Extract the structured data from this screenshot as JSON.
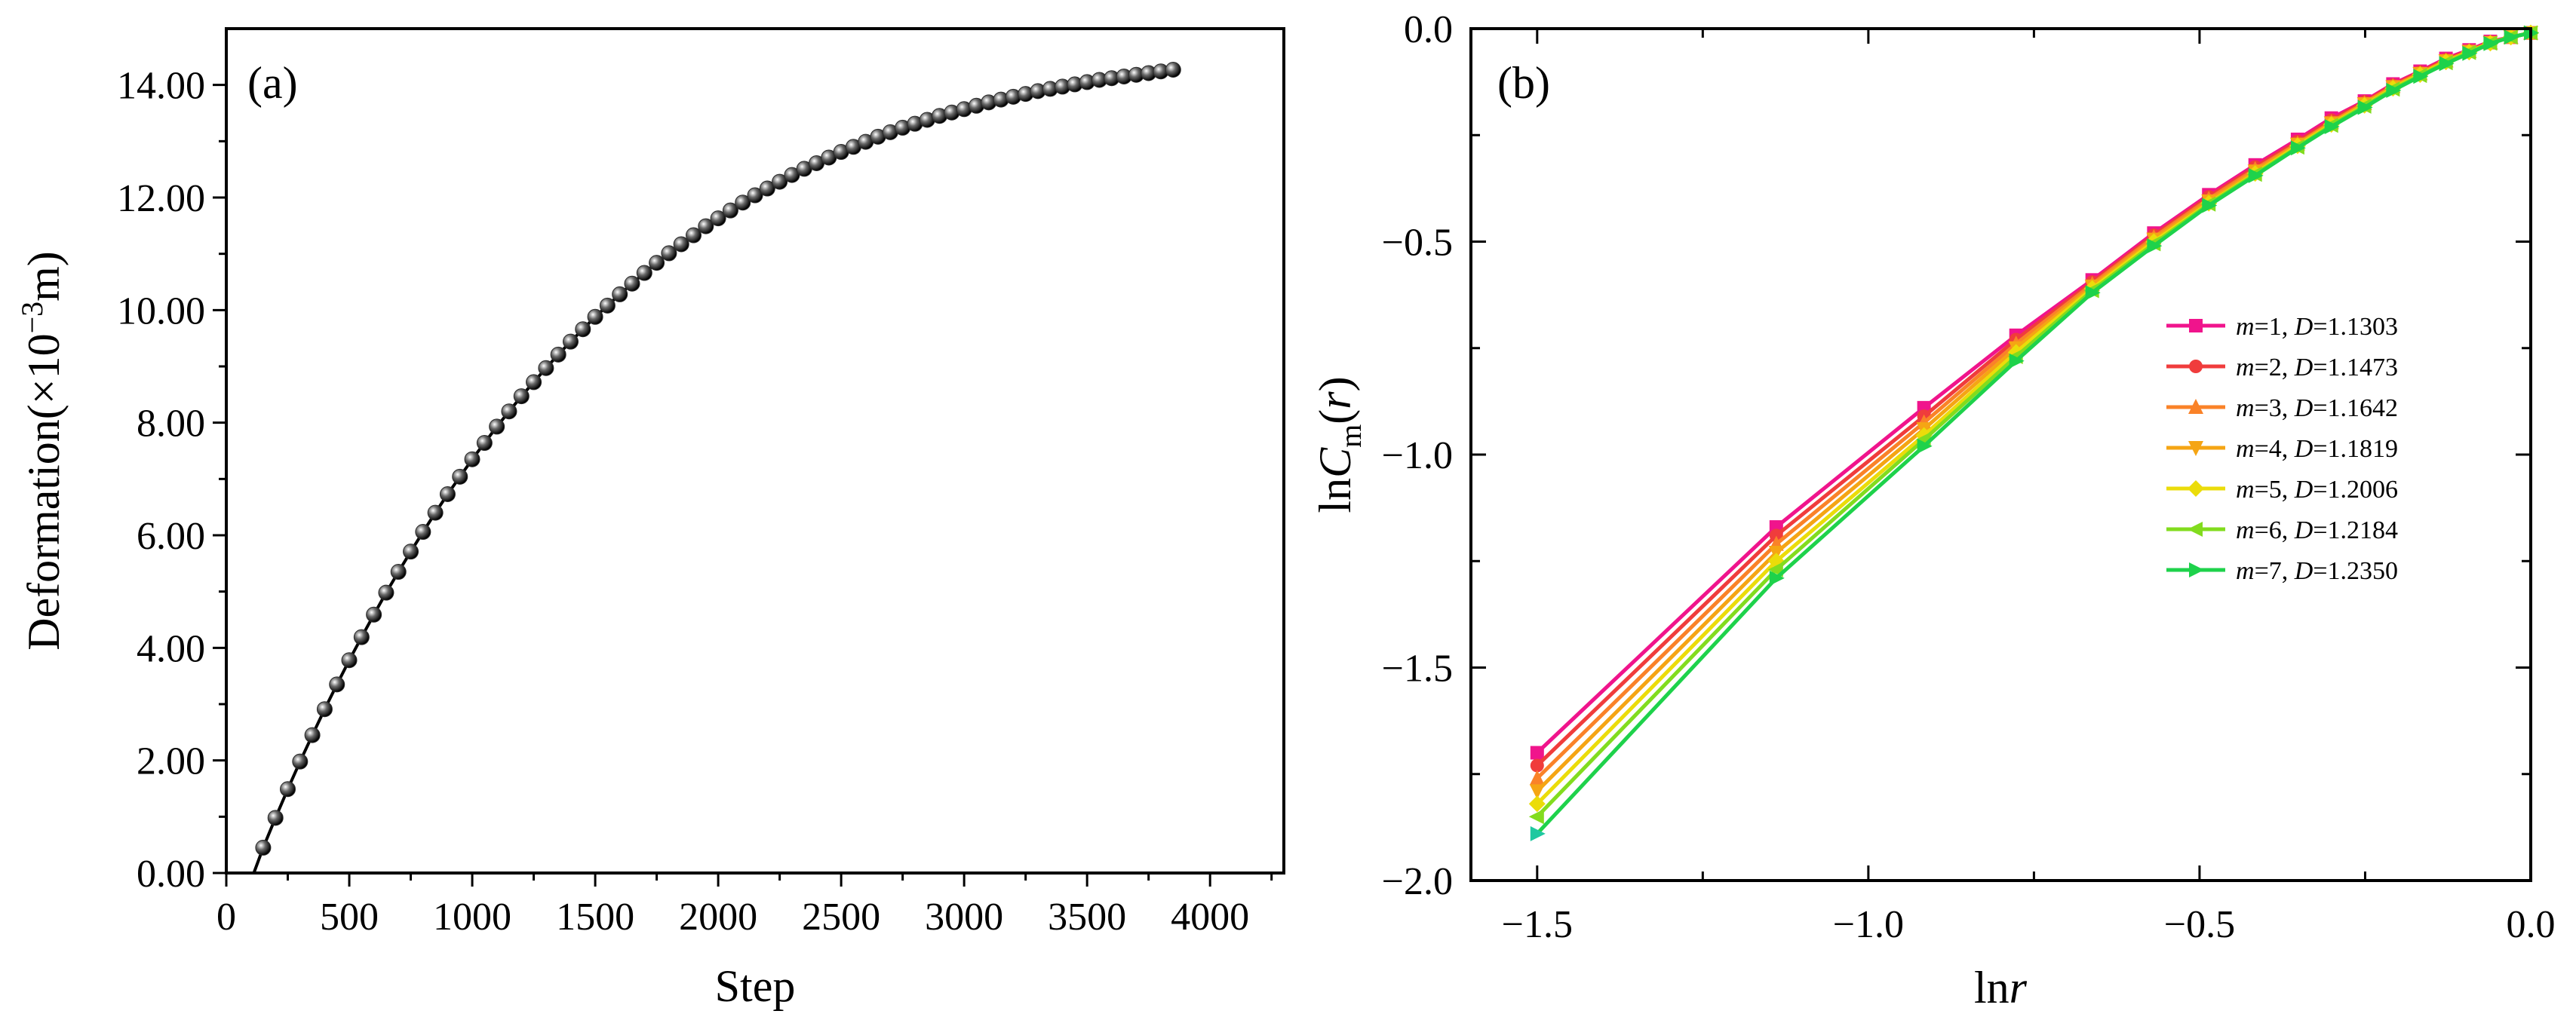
{
  "colors": {
    "axis": "#000000",
    "panel_a_curve": "#000000",
    "panel_a_marker": "#2b2b2b",
    "m1": "#f0148c",
    "m2": "#f03c3c",
    "m3": "#fa8228",
    "m4": "#f5a514",
    "m5": "#ebdc0a",
    "m6": "#82dc1e",
    "m7": "#1ed24b",
    "m7_tail": "#20c8a0"
  },
  "chart_data": [
    {
      "panel": "a",
      "panel_label": "(a)",
      "type": "scatter",
      "xlabel": "Step",
      "ylabel_prefix": "Deformation(×10",
      "ylabel_exp": "−3",
      "ylabel_suffix": "m)",
      "xlim": [
        0,
        4300
      ],
      "ylim": [
        0,
        15
      ],
      "x_ticks": [
        0,
        500,
        1000,
        1500,
        2000,
        2500,
        3000,
        3500,
        4000
      ],
      "x_tick_labels": [
        "0",
        "500",
        "1000",
        "1500",
        "2000",
        "2500",
        "3000",
        "3500",
        "4000"
      ],
      "y_ticks": [
        0,
        2,
        4,
        6,
        8,
        10,
        12,
        14
      ],
      "y_tick_labels": [
        "0.00",
        "2.00",
        "4.00",
        "6.00",
        "8.00",
        "10.00",
        "12.00",
        "14.00"
      ],
      "series": [
        {
          "name": "Deformation",
          "x": [
            150,
            200,
            250,
            300,
            350,
            400,
            450,
            500,
            550,
            600,
            650,
            700,
            750,
            800,
            850,
            900,
            950,
            1000,
            1050,
            1100,
            1150,
            1200,
            1250,
            1300,
            1350,
            1400,
            1450,
            1500,
            1550,
            1600,
            1650,
            1700,
            1750,
            1800,
            1850,
            1900,
            1950,
            2000,
            2050,
            2100,
            2150,
            2200,
            2250,
            2300,
            2350,
            2400,
            2450,
            2500,
            2550,
            2600,
            2650,
            2700,
            2750,
            2800,
            2850,
            2900,
            2950,
            3000,
            3050,
            3100,
            3150,
            3200,
            3250,
            3300,
            3350,
            3400,
            3450,
            3500,
            3550,
            3600,
            3650,
            3700,
            3750,
            3800,
            3850
          ],
          "y": [
            0.45,
            0.98,
            1.49,
            1.98,
            2.45,
            2.91,
            3.35,
            3.78,
            4.19,
            4.59,
            4.98,
            5.35,
            5.71,
            6.06,
            6.4,
            6.73,
            7.04,
            7.35,
            7.64,
            7.93,
            8.2,
            8.47,
            8.72,
            8.97,
            9.21,
            9.44,
            9.66,
            9.88,
            10.08,
            10.28,
            10.47,
            10.66,
            10.84,
            11.01,
            11.17,
            11.33,
            11.49,
            11.63,
            11.77,
            11.91,
            12.04,
            12.16,
            12.28,
            12.4,
            12.51,
            12.61,
            12.71,
            12.81,
            12.9,
            12.99,
            13.08,
            13.16,
            13.24,
            13.31,
            13.38,
            13.45,
            13.51,
            13.57,
            13.63,
            13.69,
            13.74,
            13.79,
            13.84,
            13.89,
            13.93,
            13.97,
            14.01,
            14.05,
            14.09,
            14.12,
            14.15,
            14.18,
            14.21,
            14.24,
            14.27
          ]
        }
      ]
    },
    {
      "panel": "b",
      "panel_label": "(b)",
      "type": "line",
      "xlabel": "lnr",
      "ylabel": "lnCm(r)",
      "xlim": [
        -1.6,
        0
      ],
      "ylim": [
        -2.0,
        0
      ],
      "x_ticks": [
        -1.5,
        -1.0,
        -0.5,
        0.0
      ],
      "x_tick_labels": [
        "−1.5",
        "−1.0",
        "−0.5",
        "0.0"
      ],
      "y_ticks": [
        0,
        -0.5,
        -1.0,
        -1.5,
        -2.0
      ],
      "y_tick_labels": [
        "0.0",
        "−0.5",
        "−1.0",
        "−1.5",
        "−2.0"
      ],
      "legend_position": "right",
      "x": [
        -1.5,
        -1.139,
        -0.916,
        -0.777,
        -0.662,
        -0.569,
        -0.486,
        -0.416,
        -0.352,
        -0.301,
        -0.251,
        -0.208,
        -0.167,
        -0.128,
        -0.093,
        -0.061,
        -0.03,
        0.0
      ],
      "series": [
        {
          "name": "m=1, D=1.1303",
          "m_label": "m",
          "eq": "=1, ",
          "d_label": "D",
          "d_value": "=1.1303",
          "marker": "square",
          "values": [
            -1.7,
            -1.17,
            -0.89,
            -0.72,
            -0.59,
            -0.48,
            -0.39,
            -0.32,
            -0.26,
            -0.21,
            -0.17,
            -0.13,
            -0.1,
            -0.07,
            -0.05,
            -0.03,
            -0.02,
            -0.01
          ]
        },
        {
          "name": "m=2, D=1.1473",
          "m_label": "m",
          "eq": "=2, ",
          "d_label": "D",
          "d_value": "=1.1473",
          "marker": "circle",
          "values": [
            -1.73,
            -1.19,
            -0.91,
            -0.73,
            -0.595,
            -0.485,
            -0.395,
            -0.325,
            -0.265,
            -0.215,
            -0.172,
            -0.133,
            -0.102,
            -0.073,
            -0.052,
            -0.032,
            -0.02,
            -0.01
          ]
        },
        {
          "name": "m=3, D=1.1642",
          "m_label": "m",
          "eq": "=3, ",
          "d_label": "D",
          "d_value": "=1.1642",
          "marker": "triangle-up",
          "values": [
            -1.76,
            -1.21,
            -0.925,
            -0.74,
            -0.6,
            -0.49,
            -0.4,
            -0.33,
            -0.27,
            -0.22,
            -0.175,
            -0.135,
            -0.105,
            -0.075,
            -0.053,
            -0.033,
            -0.02,
            -0.01
          ]
        },
        {
          "name": "m=4, D=1.1819",
          "m_label": "m",
          "eq": "=4, ",
          "d_label": "D",
          "d_value": "=1.1819",
          "marker": "triangle-down",
          "values": [
            -1.79,
            -1.23,
            -0.94,
            -0.75,
            -0.605,
            -0.495,
            -0.405,
            -0.335,
            -0.272,
            -0.222,
            -0.177,
            -0.137,
            -0.106,
            -0.076,
            -0.054,
            -0.033,
            -0.02,
            -0.01
          ]
        },
        {
          "name": "m=5, D=1.2006",
          "m_label": "m",
          "eq": "=5, ",
          "d_label": "D",
          "d_value": "=1.2006",
          "marker": "diamond",
          "values": [
            -1.82,
            -1.25,
            -0.955,
            -0.76,
            -0.61,
            -0.5,
            -0.41,
            -0.34,
            -0.275,
            -0.225,
            -0.18,
            -0.14,
            -0.108,
            -0.078,
            -0.055,
            -0.034,
            -0.02,
            -0.01
          ]
        },
        {
          "name": "m=6, D=1.2184",
          "m_label": "m",
          "eq": "=6, ",
          "d_label": "D",
          "d_value": "=1.2184",
          "marker": "triangle-left",
          "values": [
            -1.85,
            -1.27,
            -0.965,
            -0.77,
            -0.615,
            -0.505,
            -0.412,
            -0.342,
            -0.278,
            -0.227,
            -0.182,
            -0.142,
            -0.11,
            -0.08,
            -0.056,
            -0.034,
            -0.02,
            -0.01
          ]
        },
        {
          "name": "m=7, D=1.2350",
          "m_label": "m",
          "eq": "=7, ",
          "d_label": "D",
          "d_value": "=1.2350",
          "marker": "triangle-right",
          "values": [
            -1.89,
            -1.29,
            -0.98,
            -0.78,
            -0.62,
            -0.51,
            -0.415,
            -0.345,
            -0.28,
            -0.23,
            -0.185,
            -0.145,
            -0.112,
            -0.082,
            -0.058,
            -0.035,
            -0.02,
            -0.01
          ]
        }
      ]
    }
  ]
}
